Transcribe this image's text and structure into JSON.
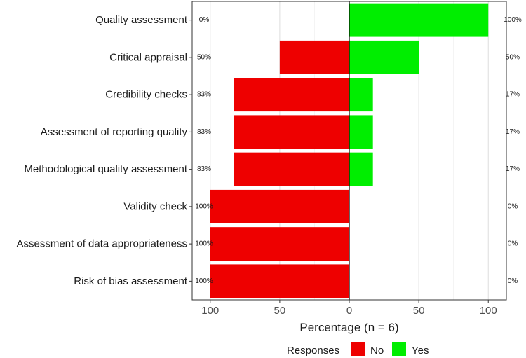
{
  "chart_data": {
    "type": "bar",
    "orientation": "horizontal-diverging",
    "categories": [
      "Quality assessment",
      "Critical appraisal",
      "Credibility checks",
      "Assessment of reporting quality",
      "Methodological quality assessment",
      "Validity check",
      "Assessment of data appropriateness",
      "Risk of bias assessment"
    ],
    "series": [
      {
        "name": "No",
        "color": "#ee0000",
        "values": [
          0,
          50,
          83,
          83,
          83,
          100,
          100,
          100
        ],
        "labels": [
          "0%",
          "50%",
          "83%",
          "83%",
          "83%",
          "100%",
          "100%",
          "100%"
        ]
      },
      {
        "name": "Yes",
        "color": "#00ee00",
        "values": [
          100,
          50,
          17,
          17,
          17,
          0,
          0,
          0
        ],
        "labels": [
          "100%",
          "50%",
          "17%",
          "17%",
          "17%",
          "0%",
          "0%",
          "0%"
        ]
      }
    ],
    "xlabel": "Percentage (n = 6)",
    "ylabel": "",
    "xlim": [
      -113,
      113
    ],
    "xticks": [
      -100,
      -50,
      0,
      50,
      100
    ],
    "xtick_labels": [
      "100",
      "50",
      "0",
      "50",
      "100"
    ],
    "grid": true,
    "legend": {
      "title": "Responses",
      "placement": "bottom",
      "entries": [
        "No",
        "Yes"
      ]
    }
  }
}
